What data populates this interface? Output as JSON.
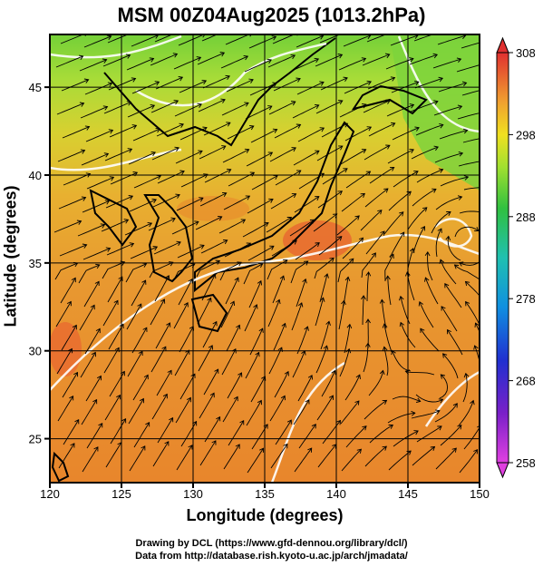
{
  "title": "MSM 00Z04Aug2025 (1013.2hPa)",
  "xaxis": {
    "label": "Longitude (degrees)",
    "ticks": [
      120,
      125,
      130,
      135,
      140,
      145,
      150
    ],
    "range": [
      120,
      150
    ]
  },
  "yaxis": {
    "label": "Latitude  (degrees)",
    "ticks": [
      25,
      30,
      35,
      40,
      45
    ],
    "range": [
      22.5,
      48
    ]
  },
  "colorbar": {
    "ticks": [
      258,
      268,
      278,
      288,
      298,
      308
    ],
    "range": [
      258,
      308
    ],
    "colors": [
      "#e040e0",
      "#5020c0",
      "#1050e0",
      "#20c0e0",
      "#30c050",
      "#a8e030",
      "#f0e020",
      "#f0a030",
      "#e06030",
      "#e03030"
    ]
  },
  "credits": {
    "line1": "Drawing by DCL (https://www.gfd-dennou.org/library/dcl/)",
    "line2": "Data from http://database.rish.kyoto-u.ac.jp/arch/jmadata/"
  },
  "map_colors": {
    "north": "#8fd840",
    "mid": "#e8c030",
    "south": "#e88a30",
    "warm_land": "#e86a30"
  }
}
